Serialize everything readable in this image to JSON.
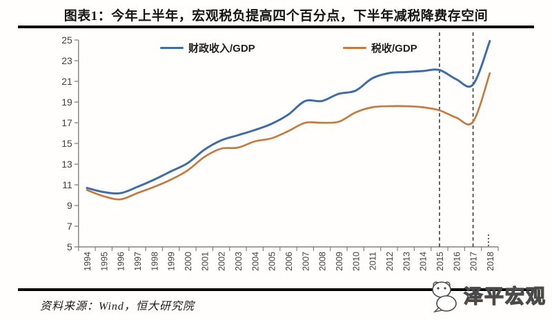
{
  "header": {
    "title": "图表1：今年上半年，宏观税负提高四个百分点，下半年减税降费存空间"
  },
  "chart_data": {
    "type": "line",
    "x": [
      1994,
      1995,
      1996,
      1997,
      1998,
      1999,
      2000,
      2001,
      2002,
      2003,
      2004,
      2005,
      2006,
      2007,
      2008,
      2009,
      2010,
      2011,
      2012,
      2013,
      2014,
      2015,
      2016,
      2017,
      2018
    ],
    "series": [
      {
        "name": "财政收入/GDP",
        "color": "#3d6ca6",
        "values": [
          10.7,
          10.3,
          10.2,
          10.8,
          11.5,
          12.3,
          13.1,
          14.4,
          15.3,
          15.8,
          16.3,
          16.9,
          17.8,
          19.1,
          19.1,
          19.8,
          20.1,
          21.3,
          21.8,
          21.9,
          22.0,
          22.1,
          21.2,
          20.7,
          24.9
        ]
      },
      {
        "name": "税收/GDP",
        "color": "#c47a3d",
        "values": [
          10.5,
          9.9,
          9.6,
          10.2,
          10.8,
          11.5,
          12.4,
          13.7,
          14.5,
          14.6,
          15.2,
          15.5,
          16.2,
          17.0,
          17.0,
          17.1,
          18.0,
          18.5,
          18.6,
          18.6,
          18.5,
          18.2,
          17.5,
          17.1,
          21.8
        ]
      }
    ],
    "ylim": [
      5,
      25
    ],
    "ytick_step": 2,
    "xlabel": "",
    "ylabel": "",
    "grid": false,
    "legend_position": "top",
    "annotations": {
      "dashed_vlines": [
        2015,
        2017
      ],
      "dotted_stub_vline": 2018
    },
    "axis_color": "#808080",
    "tick_label_color": "#404040",
    "dashline_color": "#3d3d3d"
  },
  "footer": {
    "source": "资料来源：Wind，恒大研究院",
    "logo_text": "泽平宏观"
  }
}
